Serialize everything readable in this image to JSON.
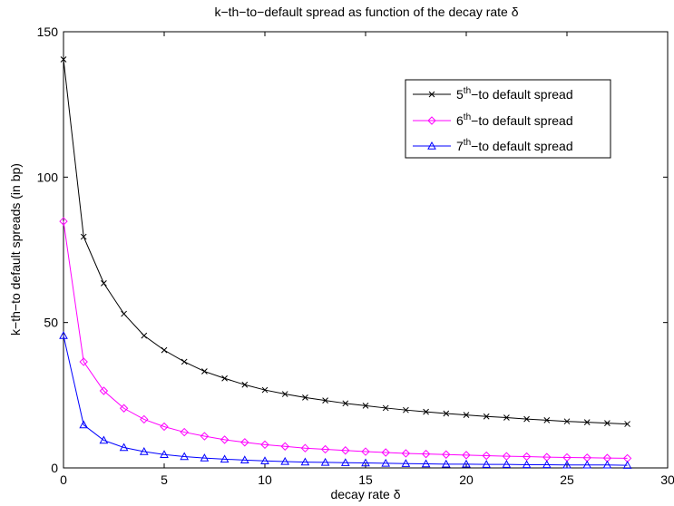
{
  "chart_data": {
    "type": "line",
    "title": "k−th−to−default spread as function of the decay rate δ",
    "xlabel": "decay rate δ",
    "ylabel": "k−th−to default spreads (in bp)",
    "xlim": [
      0,
      30
    ],
    "ylim": [
      0,
      150
    ],
    "xticks": [
      "0",
      "5",
      "10",
      "15",
      "20",
      "25",
      "30"
    ],
    "yticks": [
      "0",
      "50",
      "100",
      "150"
    ],
    "grid": false,
    "legend_position": "top-right",
    "x": [
      0,
      1,
      2,
      3,
      4,
      5,
      6,
      7,
      8,
      9,
      10,
      11,
      12,
      13,
      14,
      15,
      16,
      17,
      18,
      19,
      20,
      21,
      22,
      23,
      24,
      25,
      26,
      27,
      28
    ],
    "series": [
      {
        "name_prefix": "5",
        "name_sup": "th",
        "name_suffix": "−to default spread",
        "color": "#000000",
        "marker": "x",
        "values": [
          140.5,
          79.5,
          63.5,
          53,
          45.5,
          40.5,
          36.5,
          33.2,
          30.8,
          28.6,
          26.8,
          25.4,
          24.2,
          23.2,
          22.2,
          21.4,
          20.6,
          19.9,
          19.3,
          18.7,
          18.2,
          17.7,
          17.3,
          16.8,
          16.4,
          16.0,
          15.7,
          15.4,
          15.1
        ]
      },
      {
        "name_prefix": "6",
        "name_sup": "th",
        "name_suffix": "−to default spread",
        "color": "#ff00ff",
        "marker": "diamond",
        "values": [
          84.8,
          36.5,
          26.5,
          20.5,
          16.7,
          14.2,
          12.3,
          10.9,
          9.7,
          8.8,
          8.0,
          7.4,
          6.8,
          6.4,
          6.0,
          5.6,
          5.3,
          5.0,
          4.8,
          4.6,
          4.4,
          4.2,
          4.0,
          3.9,
          3.7,
          3.6,
          3.5,
          3.4,
          3.3
        ]
      },
      {
        "name_prefix": "7",
        "name_sup": "th",
        "name_suffix": "−to default spread",
        "color": "#0000ff",
        "marker": "triangle",
        "values": [
          45.5,
          14.8,
          9.5,
          7.0,
          5.6,
          4.6,
          3.9,
          3.4,
          3.0,
          2.7,
          2.4,
          2.2,
          2.0,
          1.9,
          1.8,
          1.7,
          1.6,
          1.5,
          1.4,
          1.3,
          1.3,
          1.2,
          1.2,
          1.1,
          1.1,
          1.0,
          1.0,
          1.0,
          0.9
        ]
      }
    ]
  }
}
